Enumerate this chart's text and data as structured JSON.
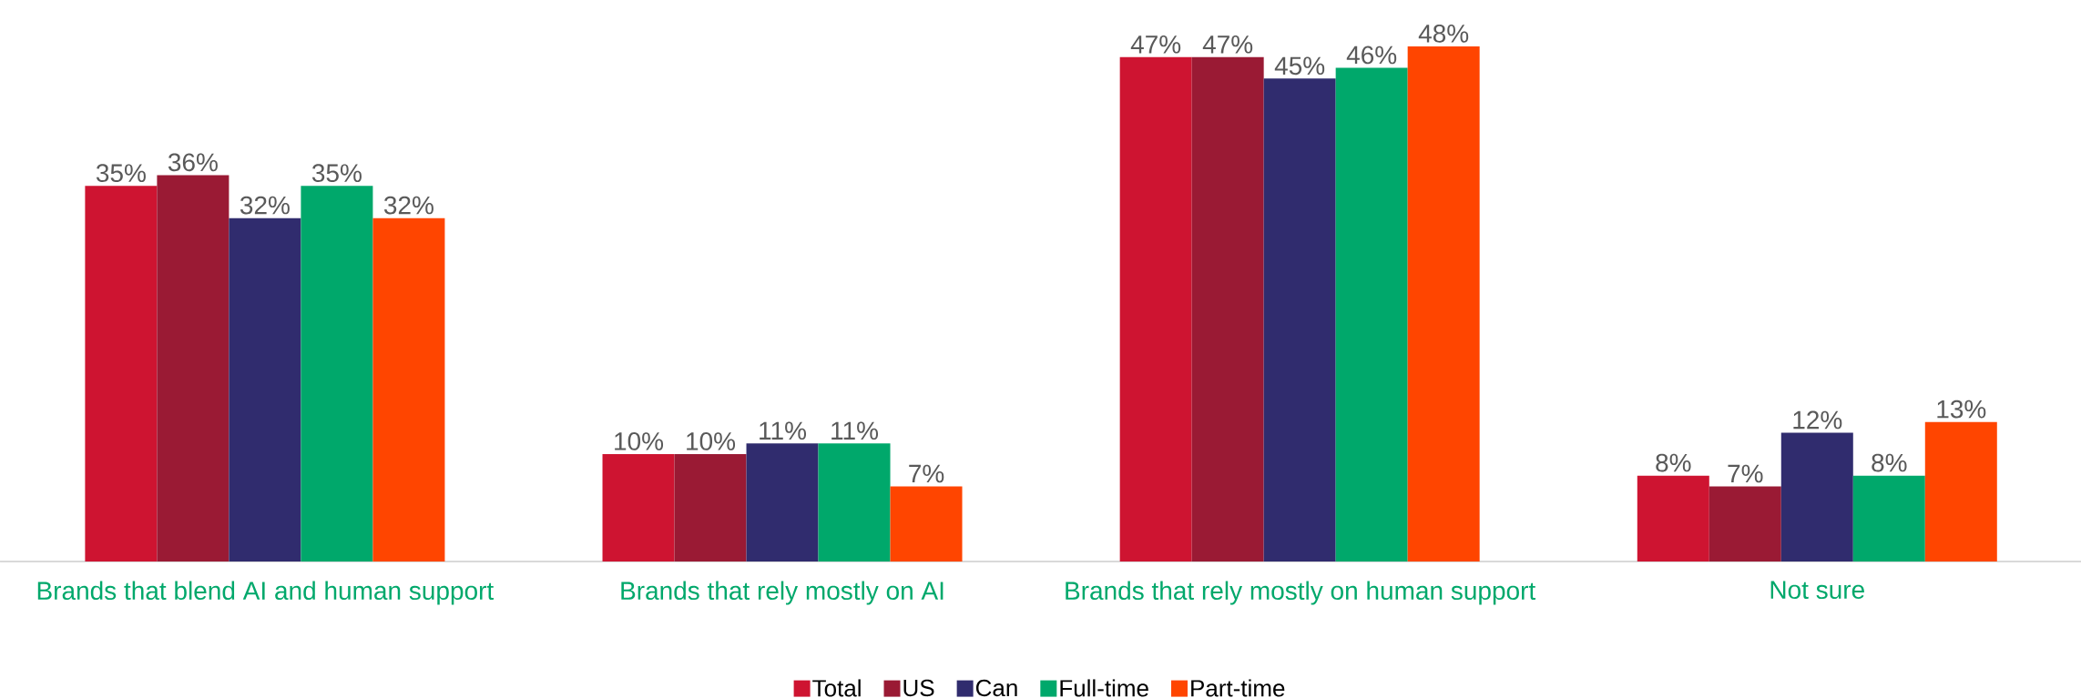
{
  "chart_data": {
    "type": "bar",
    "categories": [
      "Brands that blend AI and human support",
      "Brands that rely mostly on AI",
      "Brands that rely mostly on human support",
      "Not sure"
    ],
    "legend": "bottom",
    "series": [
      {
        "name": "Total",
        "color": "#ce1431",
        "values": [
          35,
          10,
          47,
          8
        ],
        "value_labels": [
          "35%",
          "10%",
          "47%",
          "8%"
        ]
      },
      {
        "name": "US",
        "color": "#9a1a34",
        "values": [
          36,
          10,
          47,
          7
        ],
        "value_labels": [
          "36%",
          "10%",
          "47%",
          "7%"
        ]
      },
      {
        "name": "Can",
        "color": "#302c6e",
        "values": [
          32,
          11,
          45,
          12
        ],
        "value_labels": [
          "32%",
          "11%",
          "45%",
          "12%"
        ]
      },
      {
        "name": "Full-time",
        "color": "#00a86b",
        "values": [
          35,
          11,
          46,
          8
        ],
        "value_labels": [
          "35%",
          "11%",
          "46%",
          "8%"
        ]
      },
      {
        "name": "Part-time",
        "color": "#ff4500",
        "values": [
          32,
          7,
          48,
          13
        ],
        "value_labels": [
          "32%",
          "7%",
          "48%",
          "13%"
        ]
      }
    ]
  }
}
